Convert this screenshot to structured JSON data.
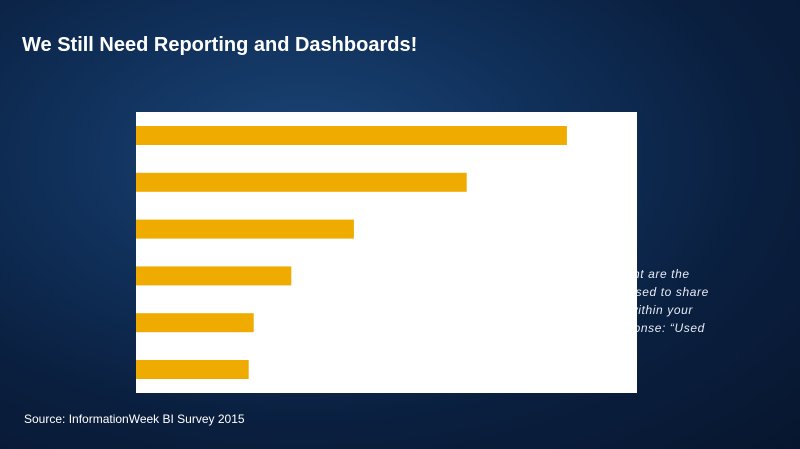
{
  "slide": {
    "title": "We Still Need Reporting and Dashboards!",
    "source": "Source: InformationWeek BI Survey 2015",
    "side_text": [
      "t extent are the",
      "gies used to share",
      "ghts within your",
      "/ response: “Used"
    ]
  },
  "colors": {
    "bar": "#efab00",
    "panel": "#ffffff",
    "background": "#0d2a52"
  },
  "chart_data": {
    "type": "bar",
    "orientation": "horizontal",
    "series": [
      {
        "values": [
          86,
          66,
          43.5,
          31,
          23.5,
          22.5
        ]
      }
    ],
    "xlim": [
      0,
      100
    ],
    "grid": false
  }
}
